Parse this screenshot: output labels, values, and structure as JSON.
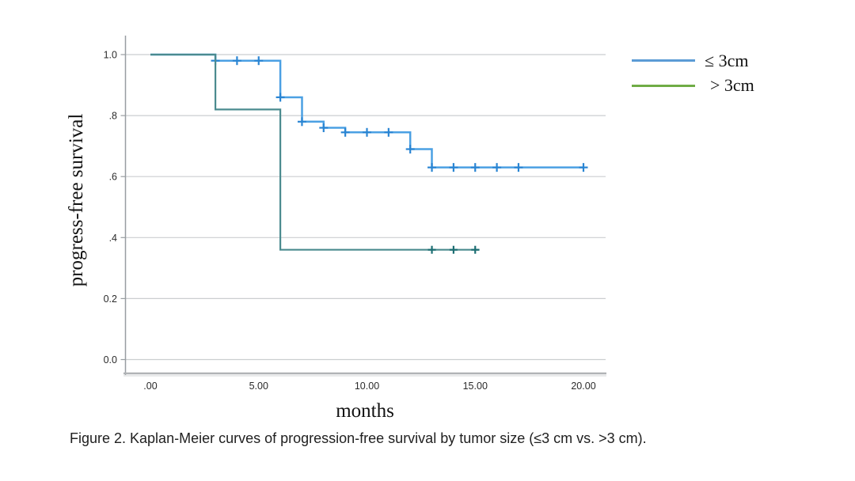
{
  "figure": {
    "caption": "Figure 2. Kaplan-Meier curves of progression-free survival by tumor size (≤3 cm vs. >3 cm)."
  },
  "chart_data": {
    "type": "line",
    "subtype": "kaplan-meier-step",
    "title": "",
    "xlabel": "months",
    "ylabel": "progress-free survival",
    "x_tick_labels": [
      ".00",
      "5.00",
      "10.00",
      "15.00",
      "20.00"
    ],
    "x_tick_values": [
      0,
      5,
      10,
      15,
      20
    ],
    "y_tick_labels": [
      "0.0",
      "0.2",
      ".4",
      ".6",
      ".8",
      "1.0"
    ],
    "y_tick_values": [
      0,
      0.2,
      0.4,
      0.6,
      0.8,
      1.0
    ],
    "xlim": [
      -1.2,
      21.2
    ],
    "ylim": [
      -0.05,
      1.06
    ],
    "grid": "horizontal-gridlines",
    "legend_position": "outside-top-right",
    "series": [
      {
        "id": "le-3cm",
        "name": "≤ 3cm",
        "curve_color": "#4ba0e3",
        "censor_color": "#2a85d3",
        "legend_color": "#5b9bd5",
        "steps": [
          [
            0,
            1.0
          ],
          [
            3,
            1.0
          ],
          [
            3,
            0.98
          ],
          [
            6,
            0.98
          ],
          [
            6,
            0.86
          ],
          [
            7,
            0.86
          ],
          [
            7,
            0.78
          ],
          [
            8,
            0.78
          ],
          [
            8,
            0.76
          ],
          [
            9,
            0.76
          ],
          [
            9,
            0.745
          ],
          [
            12,
            0.745
          ],
          [
            12,
            0.69
          ],
          [
            13,
            0.69
          ],
          [
            13,
            0.63
          ],
          [
            20,
            0.63
          ]
        ],
        "censors": [
          [
            3,
            0.98
          ],
          [
            4,
            0.98
          ],
          [
            5,
            0.98
          ],
          [
            6,
            0.86
          ],
          [
            7,
            0.78
          ],
          [
            8,
            0.76
          ],
          [
            9,
            0.745
          ],
          [
            10,
            0.745
          ],
          [
            11,
            0.745
          ],
          [
            12,
            0.69
          ],
          [
            13,
            0.63
          ],
          [
            14,
            0.63
          ],
          [
            15,
            0.63
          ],
          [
            16,
            0.63
          ],
          [
            17,
            0.63
          ],
          [
            20,
            0.63
          ]
        ]
      },
      {
        "id": "gt-3cm",
        "name": "> 3cm",
        "curve_color": "#4b8b8f",
        "censor_color": "#1d6e73",
        "legend_color": "#6fac46",
        "steps": [
          [
            0,
            1.0
          ],
          [
            3,
            1.0
          ],
          [
            3,
            0.82
          ],
          [
            6,
            0.82
          ],
          [
            6,
            0.36
          ],
          [
            15.2,
            0.36
          ]
        ],
        "censors": [
          [
            13,
            0.36
          ],
          [
            14,
            0.36
          ],
          [
            15,
            0.36
          ]
        ]
      }
    ],
    "colors": {
      "gridline": "#cbced0",
      "y_axis_line": "#989da1",
      "x_axis_line": "#b0b3b6",
      "x_axis_line_shadow": "#dcdedf"
    }
  }
}
